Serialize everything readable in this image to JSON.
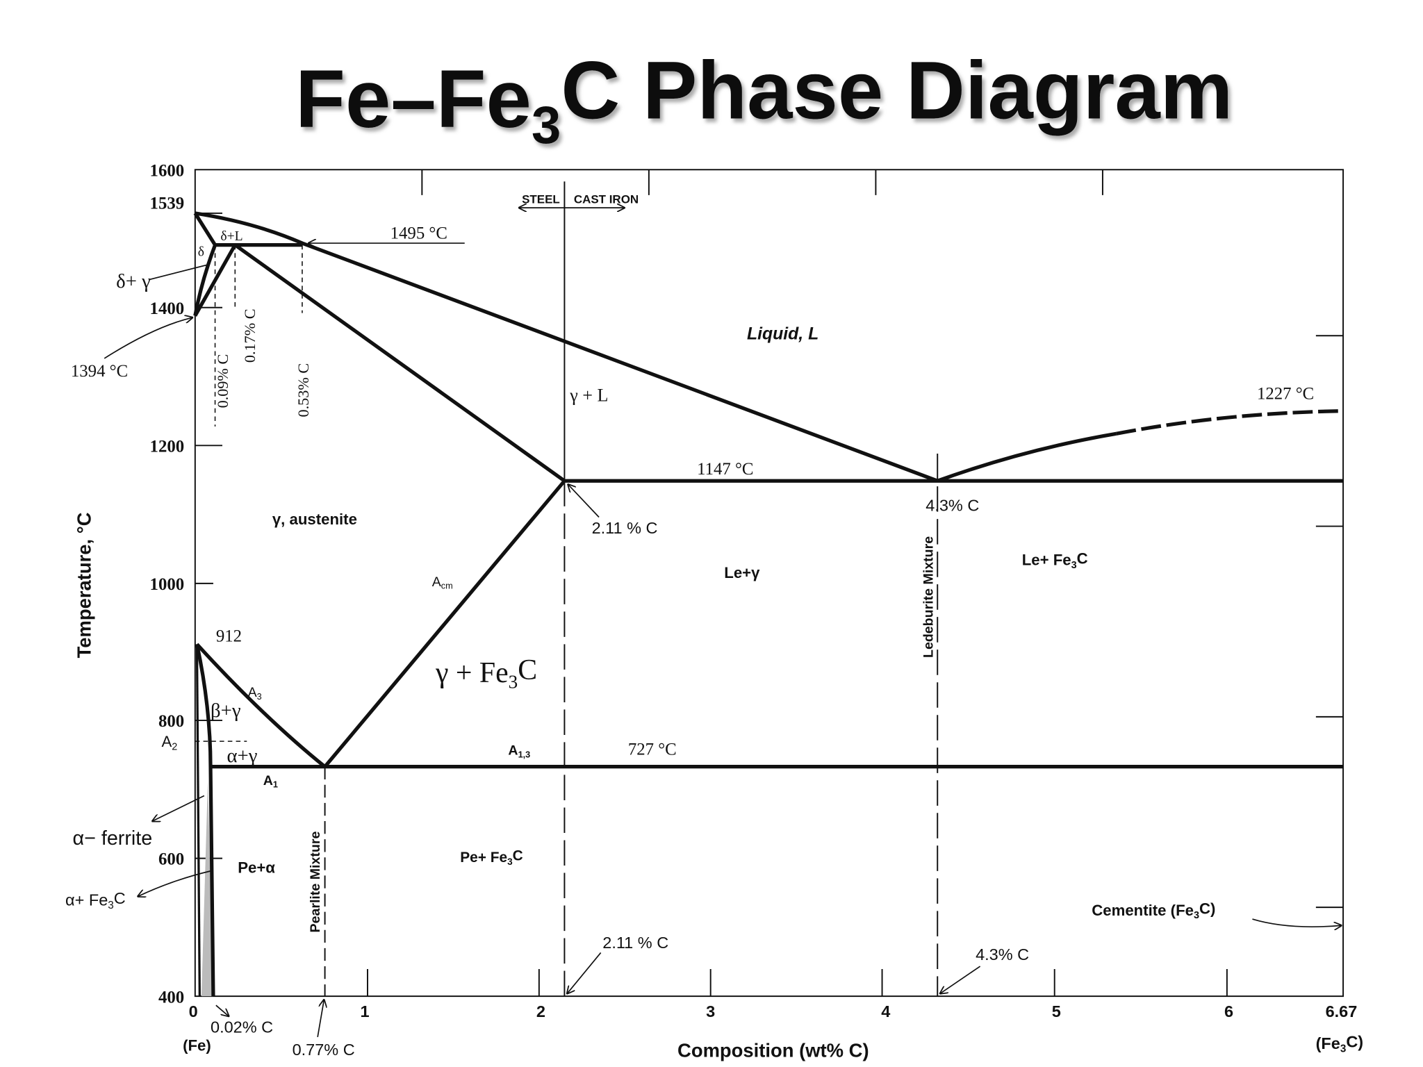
{
  "title": [
    {
      "t": "Fe–Fe"
    },
    {
      "sub": "3"
    },
    {
      "t": "C Phase Diagram"
    }
  ],
  "y_axis": {
    "label": "Temperature, °C",
    "ticks": [
      "1600",
      "1539",
      "1400",
      "1200",
      "1000",
      "800",
      "600",
      "400"
    ]
  },
  "x_axis": {
    "label": "Composition  (wt% C)",
    "ticks": [
      "0",
      "1",
      "2",
      "3",
      "4",
      "5",
      "6",
      "6.67"
    ],
    "fe": [
      {
        "t": "(Fe)"
      }
    ],
    "fe3c": [
      {
        "t": "(Fe"
      },
      {
        "sub": "3"
      },
      {
        "t": "C)"
      }
    ]
  },
  "header": {
    "steel": "STEEL",
    "cast_iron": "CAST IRON"
  },
  "labels": [
    [
      {
        "t": "1495 °C"
      }
    ],
    [
      {
        "t": "δ+L"
      }
    ],
    [
      {
        "t": "δ"
      }
    ],
    [
      {
        "t": "δ+ γ"
      }
    ],
    [
      {
        "t": "1394 °C"
      }
    ],
    [
      {
        "t": "0.09% C"
      }
    ],
    [
      {
        "t": "0.17% C"
      }
    ],
    [
      {
        "t": "0.53% C"
      }
    ],
    [
      {
        "t": "Liquid, L"
      }
    ],
    [
      {
        "t": "γ + L"
      }
    ],
    [
      {
        "t": "1227 °C"
      }
    ],
    [
      {
        "t": "1147 °C"
      }
    ],
    [
      {
        "t": "4.3% C"
      }
    ],
    [
      {
        "t": "2.11 % C"
      }
    ],
    [
      {
        "t": "γ, austenite"
      }
    ],
    [
      {
        "t": "Le+γ"
      }
    ],
    [
      {
        "t": "Le+ Fe"
      },
      {
        "sub": "3"
      },
      {
        "t": "C"
      }
    ],
    [
      {
        "t": "Ledeburite Mixture"
      }
    ],
    [
      {
        "t": "A"
      },
      {
        "sub": "cm"
      }
    ],
    [
      {
        "t": "912"
      }
    ],
    [
      {
        "t": "γ + Fe"
      },
      {
        "sub": "3"
      },
      {
        "t": "C"
      }
    ],
    [
      {
        "t": "A"
      },
      {
        "sub": "3"
      }
    ],
    [
      {
        "t": "β+γ"
      }
    ],
    [
      {
        "t": "α+γ"
      }
    ],
    [
      {
        "t": "A"
      },
      {
        "sub": "1,3"
      }
    ],
    [
      {
        "t": "727 °C"
      }
    ],
    [
      {
        "t": "A"
      },
      {
        "sub": "1"
      }
    ],
    [
      {
        "t": "α− ferrite"
      }
    ],
    [
      {
        "t": "Pe+α"
      }
    ],
    [
      {
        "t": "Pearlite Mixture"
      }
    ],
    [
      {
        "t": "Pe+ Fe"
      },
      {
        "sub": "3"
      },
      {
        "t": "C"
      }
    ],
    [
      {
        "t": "α+ Fe"
      },
      {
        "sub": "3"
      },
      {
        "t": "C"
      }
    ],
    [
      {
        "t": "Cementite (Fe"
      },
      {
        "sub": "3"
      },
      {
        "t": "C)"
      }
    ],
    [
      {
        "t": "2.11 % C"
      }
    ],
    [
      {
        "t": "4.3% C"
      }
    ],
    [
      {
        "t": "0.02% C"
      }
    ],
    [
      {
        "t": "0.77% C"
      }
    ],
    [
      {
        "t": "A"
      },
      {
        "sub": "2"
      }
    ]
  ]
}
